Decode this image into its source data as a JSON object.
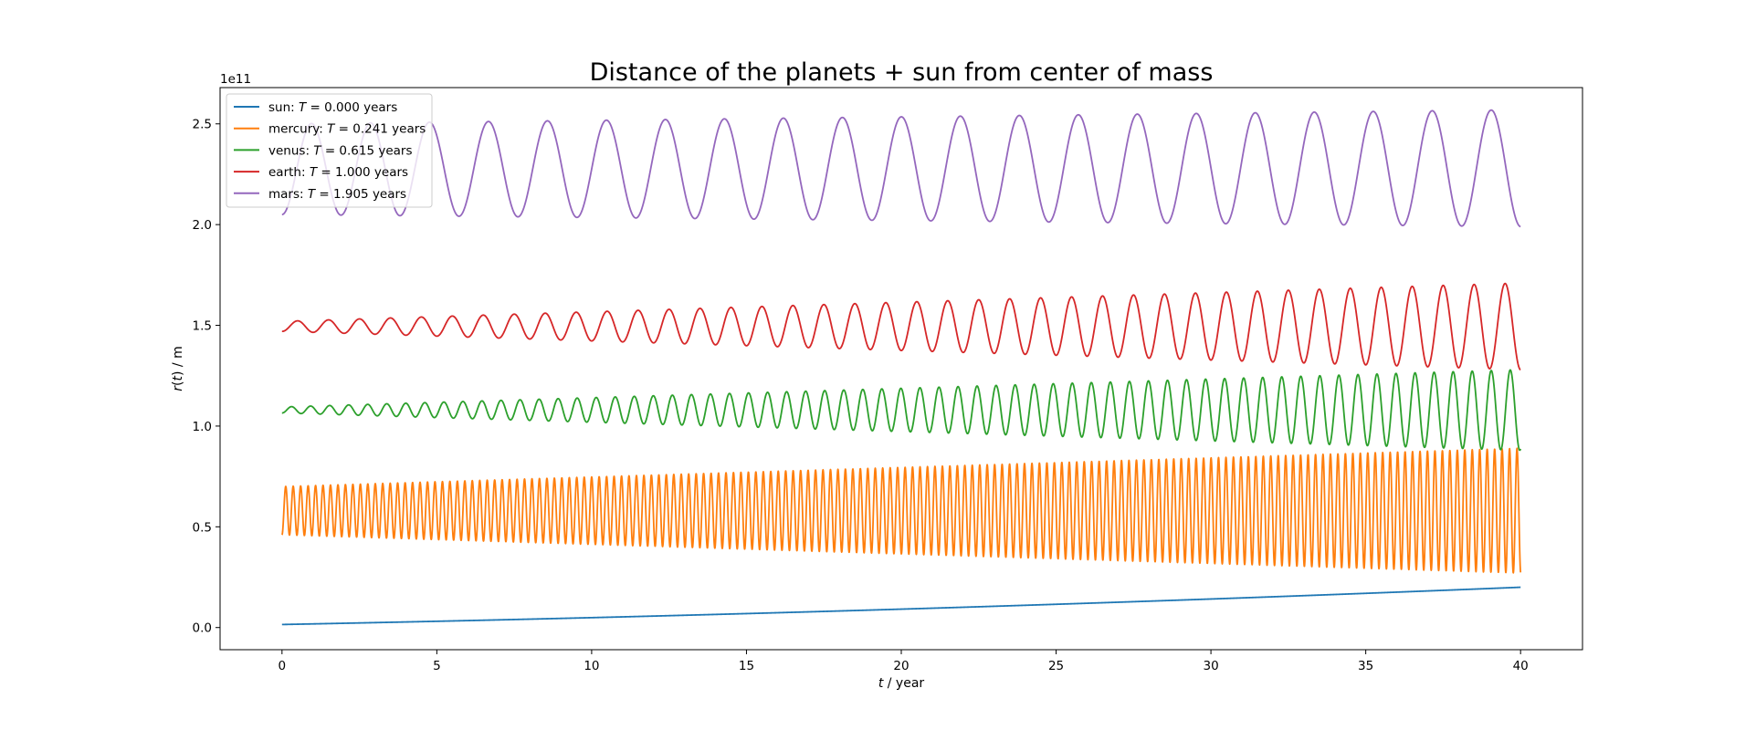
{
  "chart_data": {
    "type": "line",
    "title": "Distance of the planets + sun from center of mass",
    "xlabel": "t / year",
    "ylabel": "r(t) / m",
    "y_offset_label": "1e11",
    "xlim": [
      -2,
      42
    ],
    "ylim": [
      -0.11,
      2.68
    ],
    "x_ticks": [
      0,
      5,
      10,
      15,
      20,
      25,
      30,
      35,
      40
    ],
    "y_ticks": [
      0.0,
      0.5,
      1.0,
      1.5,
      2.0,
      2.5
    ],
    "y_tick_labels": [
      "0.0",
      "0.5",
      "1.0",
      "1.5",
      "2.0",
      "2.5"
    ],
    "grid": false,
    "legend_position": "top-left",
    "series": [
      {
        "name": "sun: T = 0.000 years",
        "legend_prefix": "sun: ",
        "legend_symbol": "T",
        "legend_suffix": " = 0.000 years",
        "color": "#1f77b4",
        "model": {
          "base_start": 0.015,
          "base_end": 0.2,
          "amp_start": 0.0,
          "amp_end": 0.0,
          "period": 1.0,
          "curve": "quadratic"
        }
      },
      {
        "name": "mercury: T = 0.241 years",
        "legend_prefix": "mercury: ",
        "legend_symbol": "T",
        "legend_suffix": " = 0.241 years",
        "color": "#ff7f0e",
        "model": {
          "base_start": 0.58,
          "base_end": 0.58,
          "amp_start": 0.12,
          "amp_end": 0.31,
          "period": 0.241
        }
      },
      {
        "name": "venus: T = 0.615 years",
        "legend_prefix": "venus: ",
        "legend_symbol": "T",
        "legend_suffix": " = 0.615 years",
        "color": "#2ca02c",
        "model": {
          "base_start": 1.08,
          "base_end": 1.08,
          "amp_start": 0.015,
          "amp_end": 0.2,
          "period": 0.615
        }
      },
      {
        "name": "earth: T = 1.000 years",
        "legend_prefix": "earth: ",
        "legend_symbol": "T",
        "legend_suffix": " = 1.000 years",
        "color": "#d62728",
        "model": {
          "base_start": 1.495,
          "base_end": 1.495,
          "amp_start": 0.025,
          "amp_end": 0.215,
          "period": 1.0
        }
      },
      {
        "name": "mars: T = 1.905 years",
        "legend_prefix": "mars: ",
        "legend_symbol": "T",
        "legend_suffix": " = 1.905 years",
        "color": "#9467bd",
        "model": {
          "base_start": 2.275,
          "base_end": 2.28,
          "amp_start": 0.225,
          "amp_end": 0.29,
          "period": 1.905
        }
      }
    ]
  }
}
